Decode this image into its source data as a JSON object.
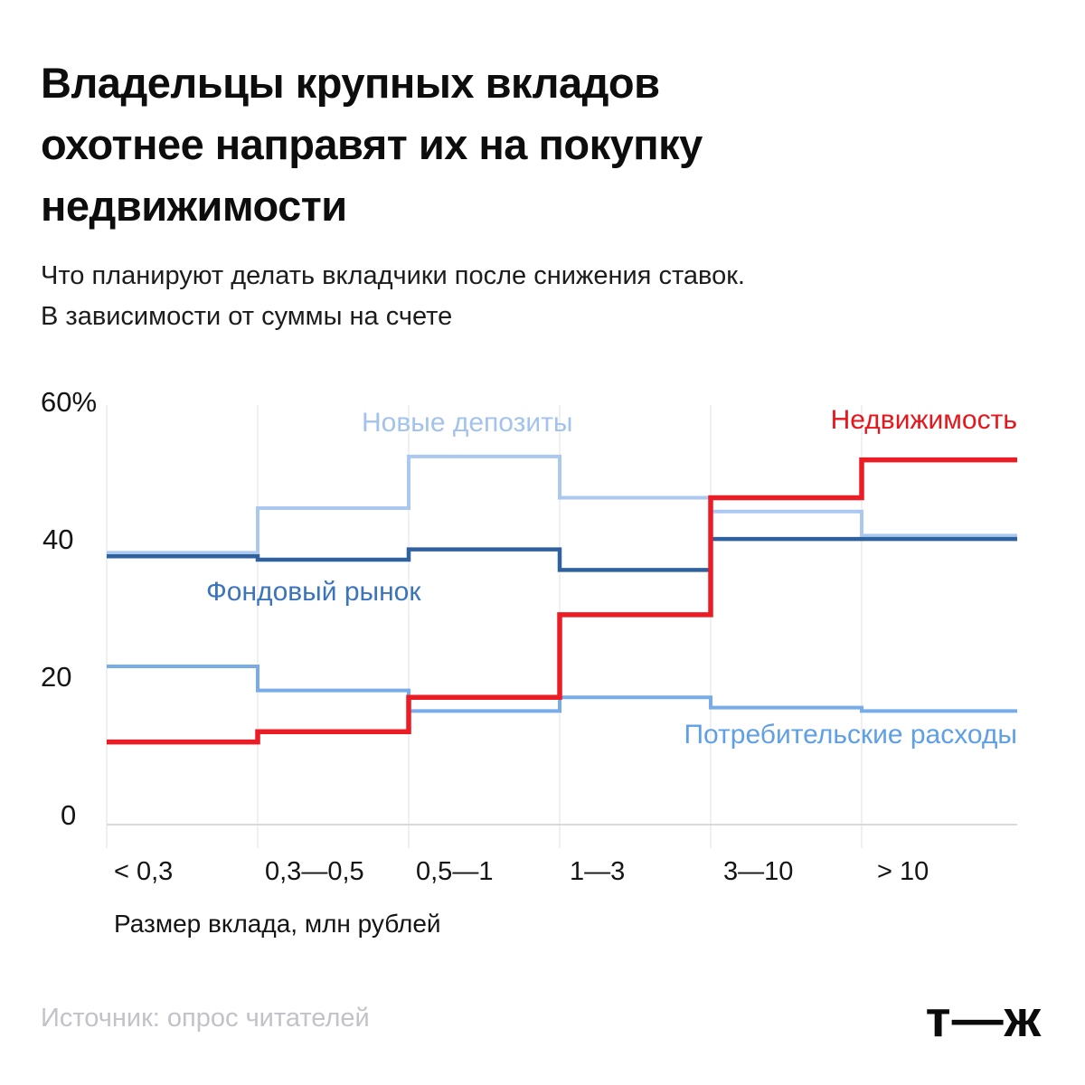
{
  "header": {
    "title": "Владельцы крупных вкладов охотнее направят их на покупку недвижимости",
    "title_lines": [
      "Владельцы крупных вкладов",
      "охотнее направят их на покупку",
      "недвижимости"
    ],
    "subtitle_lines": [
      "Что планируют делать вкладчики после снижения ставок.",
      "В зависимости от суммы на счете"
    ]
  },
  "footer": {
    "source": "Источник: опрос читателей",
    "logo": "т—ж"
  },
  "chart_data": {
    "type": "line",
    "subtype": "step",
    "title": "Что планируют делать вкладчики после снижения ставок",
    "xlabel": "Размер вклада, млн рублей",
    "ylabel": "",
    "x": [
      "< 0,3",
      "0,3—0,5",
      "0,5—1",
      "1—3",
      "3—10",
      "> 10"
    ],
    "ylim": [
      0,
      60
    ],
    "yticks": [
      0,
      20,
      40,
      60
    ],
    "ytick_labels": [
      "0",
      "20",
      "40",
      "60%"
    ],
    "grid": "vertical-only",
    "legend_position": "inline-labels",
    "series": [
      {
        "name": "Новые депозиты",
        "color": "#aac8f0",
        "label_color": "#a3c2ec",
        "values": [
          39.5,
          46.0,
          53.5,
          47.5,
          45.5,
          42.0
        ]
      },
      {
        "name": "Потребительские расходы",
        "color": "#77ace9",
        "label_color": "#5e9fe6",
        "values": [
          23.0,
          19.5,
          16.5,
          18.5,
          17.0,
          16.5
        ]
      },
      {
        "name": "Фондовый рынок",
        "color": "#30619f",
        "label_color": "#3b74bd",
        "values": [
          39.0,
          38.5,
          40.0,
          37.0,
          41.5,
          41.5
        ]
      },
      {
        "name": "Недвижимость",
        "color": "#ec1c24",
        "label_color": "#e8151b",
        "values": [
          12.0,
          13.5,
          18.5,
          30.5,
          47.5,
          53.0
        ]
      }
    ]
  }
}
